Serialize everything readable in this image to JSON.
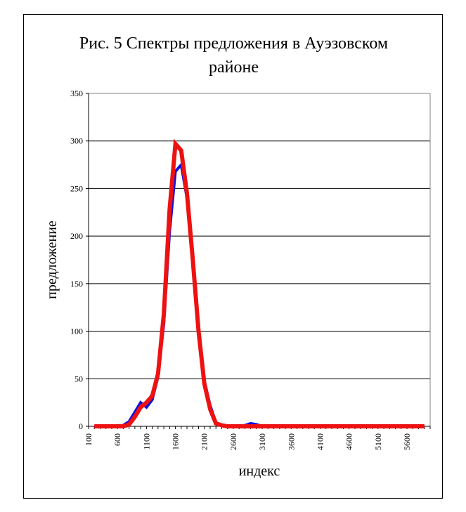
{
  "chart_data": {
    "type": "line",
    "title_line1": "Рис. 5 Спектры предложения в Ауэзовском",
    "title_line2": "районе",
    "xlabel": "индекс",
    "ylabel": "предложение",
    "ylim": [
      0,
      350
    ],
    "y_ticks": [
      0,
      50,
      100,
      150,
      200,
      250,
      300,
      350
    ],
    "x_tick_labels": [
      "100",
      "600",
      "1100",
      "1600",
      "2100",
      "2600",
      "3100",
      "3600",
      "4100",
      "4600",
      "5100",
      "5600"
    ],
    "x_tick_values": [
      100,
      600,
      1100,
      1600,
      2100,
      2600,
      3100,
      3600,
      4100,
      4600,
      5100,
      5600
    ],
    "xlim": [
      100,
      6000
    ],
    "grid": "horizontal",
    "series": [
      {
        "color": "#1010dd",
        "x": [
          200,
          300,
          400,
          500,
          600,
          700,
          800,
          900,
          1000,
          1100,
          1200,
          1300,
          1400,
          1500,
          1600,
          1700,
          1800,
          1900,
          2000,
          2100,
          2200,
          2300,
          2400,
          2500,
          2600,
          2700,
          2800,
          2900,
          3000,
          3100,
          3200,
          3300,
          3400,
          3500,
          3600,
          3700,
          3800,
          3900,
          4000,
          4100,
          4200,
          4300,
          4400,
          4500,
          4600,
          4700,
          4800,
          4900,
          5000,
          5100,
          5200,
          5300,
          5400,
          5500,
          5600,
          5700,
          5800,
          5900
        ],
        "values": [
          0,
          0,
          0,
          0,
          0,
          1,
          5,
          15,
          25,
          20,
          28,
          52,
          108,
          205,
          268,
          275,
          240,
          170,
          100,
          48,
          22,
          4,
          1,
          0,
          0,
          0,
          1,
          3,
          2,
          0,
          0,
          0,
          0,
          0,
          0,
          0,
          0,
          0,
          0,
          0,
          0,
          0,
          0,
          0,
          0,
          0,
          0,
          0,
          0,
          0,
          0,
          0,
          0,
          0,
          0,
          0,
          0,
          0
        ]
      },
      {
        "color": "#ee1111",
        "x": [
          200,
          300,
          400,
          500,
          600,
          700,
          800,
          900,
          1000,
          1100,
          1200,
          1300,
          1400,
          1500,
          1600,
          1700,
          1800,
          1900,
          2000,
          2100,
          2200,
          2300,
          2400,
          2500,
          2600,
          2700,
          2800,
          2900,
          3000,
          3100,
          3200,
          3300,
          3400,
          3500,
          3600,
          3700,
          3800,
          3900,
          4000,
          4100,
          4200,
          4300,
          4400,
          4500,
          4600,
          4700,
          4800,
          4900,
          5000,
          5100,
          5200,
          5300,
          5400,
          5500,
          5600,
          5700,
          5800,
          5900
        ],
        "values": [
          0,
          0,
          0,
          0,
          0,
          0,
          2,
          10,
          20,
          25,
          32,
          55,
          118,
          228,
          297,
          290,
          245,
          175,
          100,
          45,
          18,
          3,
          1,
          0,
          0,
          0,
          0,
          0,
          0,
          0,
          0,
          0,
          0,
          0,
          0,
          0,
          0,
          0,
          0,
          0,
          0,
          0,
          0,
          0,
          0,
          0,
          0,
          0,
          0,
          0,
          0,
          0,
          0,
          0,
          0,
          0,
          0,
          0
        ]
      }
    ]
  }
}
